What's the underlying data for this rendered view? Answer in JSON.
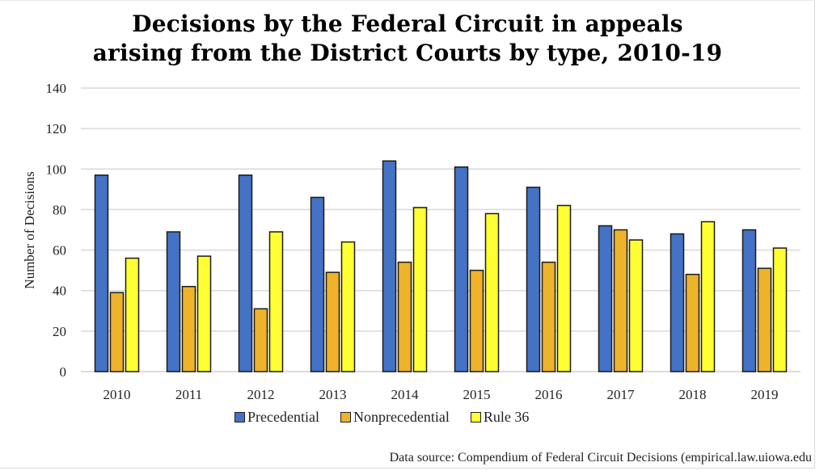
{
  "chart_data": {
    "type": "bar",
    "title": "Decisions by the Federal Circuit in appeals arising from the District Courts by type, 2010-19",
    "title_lines": [
      "Decisions by the Federal Circuit in appeals",
      "arising from the District Courts by type, 2010-19"
    ],
    "xlabel": "",
    "ylabel": "Number of Decisions",
    "ylim": [
      0,
      140
    ],
    "yticks": [
      0,
      20,
      40,
      60,
      80,
      100,
      120,
      140
    ],
    "grid": true,
    "legend_position": "bottom",
    "categories": [
      "2010",
      "2011",
      "2012",
      "2013",
      "2014",
      "2015",
      "2016",
      "2017",
      "2018",
      "2019"
    ],
    "series": [
      {
        "name": "Precedential",
        "color": "#4472C4",
        "values": [
          97,
          69,
          97,
          86,
          104,
          101,
          91,
          72,
          68,
          70
        ]
      },
      {
        "name": "Nonprecedential",
        "color": "#EDB32B",
        "values": [
          39,
          42,
          31,
          49,
          54,
          50,
          54,
          70,
          48,
          51
        ]
      },
      {
        "name": "Rule 36",
        "color": "#FFFF33",
        "values": [
          56,
          57,
          69,
          64,
          81,
          78,
          82,
          65,
          74,
          61
        ]
      }
    ],
    "source": "Data source: Compendium of Federal Circuit Decisions (empirical.law.uiowa.edu"
  }
}
